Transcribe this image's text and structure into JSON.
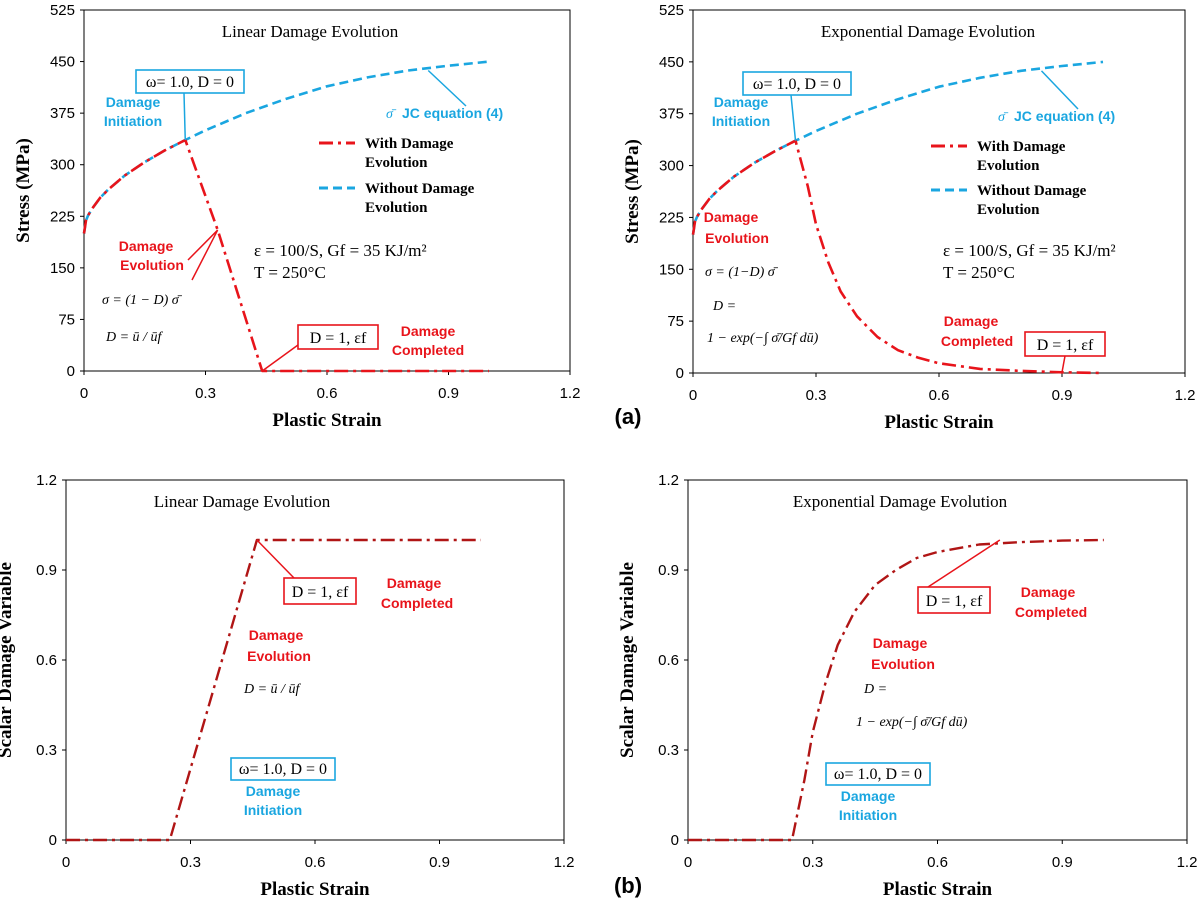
{
  "panel_labels": [
    "(a)",
    "(b)"
  ],
  "chart_data": [
    {
      "type": "line",
      "title": "Linear Damage Evolution",
      "xlabel": "Plastic Strain",
      "ylabel": "Stress (MPa)",
      "xlim": [
        0,
        1.2
      ],
      "ylim": [
        0,
        525
      ],
      "xticks": [
        "0",
        "0.3",
        "0.6",
        "0.9",
        "1.2"
      ],
      "yticks": [
        "0",
        "75",
        "150",
        "225",
        "300",
        "375",
        "450",
        "525"
      ],
      "grid": false,
      "legend_position": "right",
      "series": [
        {
          "name": "Without Damage Evolution",
          "color": "#1aa6e0",
          "style": "dashed",
          "x": [
            0,
            0.005,
            0.01,
            0.02,
            0.04,
            0.06,
            0.08,
            0.1,
            0.15,
            0.2,
            0.25,
            0.3,
            0.4,
            0.5,
            0.6,
            0.7,
            0.8,
            0.9,
            1.0
          ],
          "y": [
            200,
            219,
            226,
            236,
            252,
            264,
            274,
            284,
            304,
            321,
            336,
            350,
            375,
            396,
            414,
            427,
            437,
            444,
            450
          ]
        },
        {
          "name": "With Damage Evolution",
          "color": "#e8141b",
          "style": "dash-dot",
          "x": [
            0,
            0.005,
            0.01,
            0.02,
            0.04,
            0.06,
            0.08,
            0.1,
            0.15,
            0.2,
            0.25,
            0.33,
            0.44,
            0.6,
            0.8,
            1.0
          ],
          "y": [
            200,
            219,
            226,
            236,
            252,
            264,
            274,
            284,
            304,
            321,
            336,
            205,
            0,
            0,
            0,
            0
          ]
        }
      ],
      "legend": [
        "With Damage Evolution",
        "Without Damage Evolution"
      ],
      "legend_lines": [
        [
          "With Damage",
          "Evolution"
        ],
        [
          "Without Damage",
          "Evolution"
        ]
      ],
      "series_tag": {
        "symbol": "σ̄",
        "text": "JC equation (4)"
      },
      "boxes": {
        "initiation": "ω= 1.0, D = 0",
        "completion": "D = 1, εf"
      },
      "annotations": {
        "initiation": [
          "Damage",
          "Initiation"
        ],
        "evolution": [
          "Damage",
          "Evolution"
        ],
        "completed": [
          "Damage",
          "Completed"
        ]
      },
      "conditions": [
        "ε = 100/S, Gf = 35 KJ/m²",
        "T = 250°C"
      ],
      "formulas": [
        "σ = (1 − D) σ̄",
        "D = ū / ūf"
      ]
    },
    {
      "type": "line",
      "title": "Exponential Damage Evolution",
      "xlabel": "Plastic Strain",
      "ylabel": "Stress (MPa)",
      "xlim": [
        0,
        1.2
      ],
      "ylim": [
        0,
        525
      ],
      "xticks": [
        "0",
        "0.3",
        "0.6",
        "0.9",
        "1.2"
      ],
      "yticks": [
        "0",
        "75",
        "150",
        "225",
        "300",
        "375",
        "450",
        "525"
      ],
      "grid": false,
      "legend_position": "right",
      "series": [
        {
          "name": "Without Damage Evolution",
          "color": "#1aa6e0",
          "style": "dashed",
          "x": [
            0,
            0.005,
            0.01,
            0.02,
            0.04,
            0.06,
            0.08,
            0.1,
            0.15,
            0.2,
            0.25,
            0.3,
            0.4,
            0.5,
            0.6,
            0.7,
            0.8,
            0.9,
            1.0
          ],
          "y": [
            200,
            219,
            226,
            236,
            252,
            264,
            274,
            284,
            304,
            321,
            336,
            350,
            375,
            396,
            414,
            427,
            437,
            444,
            450
          ]
        },
        {
          "name": "With Damage Evolution",
          "color": "#e8141b",
          "style": "dash-dot",
          "x": [
            0,
            0.005,
            0.01,
            0.02,
            0.04,
            0.06,
            0.08,
            0.1,
            0.15,
            0.2,
            0.25,
            0.28,
            0.3,
            0.33,
            0.36,
            0.4,
            0.45,
            0.5,
            0.55,
            0.6,
            0.7,
            0.8,
            0.9,
            1.0
          ],
          "y": [
            200,
            219,
            226,
            236,
            252,
            264,
            274,
            284,
            304,
            321,
            336,
            270,
            215,
            160,
            118,
            82,
            52,
            33,
            22,
            14,
            6,
            3,
            1,
            0
          ]
        }
      ],
      "legend": [
        "With Damage Evolution",
        "Without Damage Evolution"
      ],
      "legend_lines": [
        [
          "With Damage",
          "Evolution"
        ],
        [
          "Without Damage",
          "Evolution"
        ]
      ],
      "series_tag": {
        "symbol": "σ̄",
        "text": "JC equation (4)"
      },
      "boxes": {
        "initiation": "ω= 1.0, D = 0",
        "completion": "D = 1, εf"
      },
      "annotations": {
        "initiation": [
          "Damage",
          "Initiation"
        ],
        "evolution": [
          "Damage",
          "Evolution"
        ],
        "completed": [
          "Damage",
          "Completed"
        ]
      },
      "conditions": [
        "ε = 100/S, Gf = 35 KJ/m²",
        "T = 250°C"
      ],
      "formulas": [
        "σ = (1−D) σ̄",
        "D =",
        "1 − exp(−∫ σ̄/Gf dū)"
      ]
    },
    {
      "type": "line",
      "title": "Linear Damage Evolution",
      "xlabel": "Plastic Strain",
      "ylabel": "Scalar Damage Variable",
      "xlim": [
        0,
        1.2
      ],
      "ylim": [
        0,
        1.2
      ],
      "xticks": [
        "0",
        "0.3",
        "0.6",
        "0.9",
        "1.2"
      ],
      "yticks": [
        "0",
        "0.3",
        "0.6",
        "0.9",
        "1.2"
      ],
      "grid": false,
      "series": [
        {
          "name": "Scalar damage",
          "color": "#b01515",
          "style": "dash-dot",
          "x": [
            0,
            0.25,
            0.46,
            0.6,
            0.8,
            1.0
          ],
          "y": [
            0,
            0,
            1.0,
            1.0,
            1.0,
            1.0
          ]
        }
      ],
      "boxes": {
        "initiation": "ω= 1.0, D = 0",
        "completion": "D = 1, εf"
      },
      "annotations": {
        "initiation": [
          "Damage",
          "Initiation"
        ],
        "evolution": [
          "Damage",
          "Evolution"
        ],
        "completed": [
          "Damage",
          "Completed"
        ]
      },
      "formulas": [
        "D = ū / ūf"
      ]
    },
    {
      "type": "line",
      "title": "Exponential Damage  Evolution",
      "xlabel": "Plastic Strain",
      "ylabel": "Scalar Damage Variable",
      "xlim": [
        0,
        1.2
      ],
      "ylim": [
        0,
        1.2
      ],
      "xticks": [
        "0",
        "0.3",
        "0.6",
        "0.9",
        "1.2"
      ],
      "yticks": [
        "0",
        "0.3",
        "0.6",
        "0.9",
        "1.2"
      ],
      "grid": false,
      "series": [
        {
          "name": "Scalar damage",
          "color": "#b01515",
          "style": "dash-dot",
          "x": [
            0,
            0.24,
            0.25,
            0.28,
            0.3,
            0.33,
            0.36,
            0.4,
            0.45,
            0.5,
            0.55,
            0.6,
            0.7,
            0.8,
            0.9,
            1.0
          ],
          "y": [
            0,
            0,
            0,
            0.2,
            0.36,
            0.52,
            0.65,
            0.76,
            0.85,
            0.9,
            0.94,
            0.96,
            0.985,
            0.993,
            0.998,
            1.0
          ]
        }
      ],
      "boxes": {
        "initiation": "ω= 1.0, D = 0",
        "completion": "D = 1, εf"
      },
      "annotations": {
        "initiation": [
          "Damage",
          "Initiation"
        ],
        "evolution": [
          "Damage",
          "Evolution"
        ],
        "completed": [
          "Damage",
          "Completed"
        ]
      },
      "formulas": [
        "D =",
        "1 − exp(−∫ σ̄/Gf dū)"
      ]
    }
  ]
}
